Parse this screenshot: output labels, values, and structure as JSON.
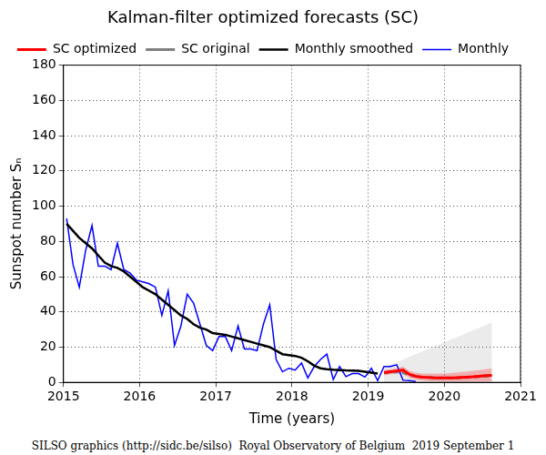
{
  "chart_data": {
    "type": "line",
    "title": "Kalman-filter optimized forecasts (SC)",
    "x_label": "Time (years)",
    "y_label": "Sunspot number Sₙ",
    "caption": "SILSO graphics (http://sidc.be/silso)  Royal Observatory of Belgium  2019 September 1",
    "xlim": [
      2015,
      2021
    ],
    "xticks": [
      2015,
      2016,
      2017,
      2018,
      2019,
      2020,
      2021
    ],
    "ylim": [
      0,
      180
    ],
    "yticks": [
      0,
      20,
      40,
      60,
      80,
      100,
      120,
      140,
      160,
      180
    ],
    "grid": true,
    "legend": "top",
    "series": [
      {
        "name": "Monthly",
        "color": "#0000ff",
        "line_style": "solid",
        "x": [
          2015.042,
          2015.125,
          2015.208,
          2015.292,
          2015.375,
          2015.458,
          2015.542,
          2015.625,
          2015.708,
          2015.792,
          2015.875,
          2015.958,
          2016.042,
          2016.125,
          2016.208,
          2016.292,
          2016.375,
          2016.458,
          2016.542,
          2016.625,
          2016.708,
          2016.792,
          2016.875,
          2016.958,
          2017.042,
          2017.125,
          2017.208,
          2017.292,
          2017.375,
          2017.458,
          2017.542,
          2017.625,
          2017.708,
          2017.792,
          2017.875,
          2017.958,
          2018.042,
          2018.125,
          2018.208,
          2018.292,
          2018.375,
          2018.458,
          2018.542,
          2018.625,
          2018.708,
          2018.792,
          2018.875,
          2018.958,
          2019.042,
          2019.125,
          2019.208,
          2019.292,
          2019.375,
          2019.458,
          2019.542,
          2019.625
        ],
        "values": [
          93,
          67,
          54,
          75,
          89,
          66,
          66,
          64,
          79,
          64,
          62,
          58,
          57,
          56,
          54,
          38,
          52,
          21,
          32,
          50,
          45,
          33,
          21,
          18,
          26,
          26,
          18,
          32,
          19,
          19,
          18,
          33,
          44,
          13,
          6,
          8,
          7,
          11,
          2.5,
          9,
          13,
          16,
          1.6,
          9,
          3.3,
          5,
          5,
          3,
          8,
          1,
          9,
          9,
          10,
          1.2,
          1,
          0.5
        ]
      },
      {
        "name": "Monthly smoothed",
        "color": "#000000",
        "line_style": "solid",
        "x": [
          2015.042,
          2015.125,
          2015.208,
          2015.292,
          2015.375,
          2015.458,
          2015.542,
          2015.625,
          2015.708,
          2015.792,
          2015.875,
          2015.958,
          2016.042,
          2016.125,
          2016.208,
          2016.292,
          2016.375,
          2016.458,
          2016.542,
          2016.625,
          2016.708,
          2016.792,
          2016.875,
          2016.958,
          2017.042,
          2017.125,
          2017.208,
          2017.292,
          2017.375,
          2017.458,
          2017.542,
          2017.625,
          2017.708,
          2017.792,
          2017.875,
          2017.958,
          2018.042,
          2018.125,
          2018.208,
          2018.292,
          2018.375,
          2018.458,
          2018.542,
          2018.625,
          2018.708,
          2018.792,
          2018.875,
          2018.958,
          2019.042,
          2019.125
        ],
        "values": [
          90,
          86,
          82,
          79,
          76,
          72,
          68,
          66,
          65,
          63,
          60,
          57,
          54,
          52,
          50,
          47,
          44,
          41,
          38,
          36,
          33,
          31,
          30,
          28,
          27.5,
          27,
          26,
          25,
          24,
          23,
          22,
          21,
          20,
          18,
          16,
          15.5,
          15,
          14,
          12,
          9.5,
          8,
          7.5,
          7.2,
          7,
          6.8,
          6.7,
          6.5,
          6,
          5.5,
          5
        ]
      },
      {
        "name": "SC original",
        "color": "#808080",
        "line_style": "dashed",
        "x": [
          2019.208,
          2019.292,
          2019.375,
          2019.458,
          2019.542,
          2019.625,
          2019.708,
          2019.792,
          2019.875,
          2019.958,
          2020.042,
          2020.125,
          2020.208,
          2020.292,
          2020.375,
          2020.458,
          2020.542,
          2020.625
        ],
        "values": [
          5.5,
          5.8,
          6,
          5.5,
          4,
          3.5,
          3,
          2.8,
          2.6,
          2.5,
          2.5,
          2.5,
          2.6,
          2.8,
          3,
          3.2,
          3.4,
          3.6
        ],
        "lower": [
          0,
          0,
          0,
          0,
          0,
          0,
          0,
          0,
          0,
          0,
          0,
          0,
          0,
          0,
          0,
          0,
          0,
          0
        ],
        "upper": [
          8,
          10,
          11.5,
          13,
          14.5,
          16,
          17.5,
          19,
          20.5,
          22,
          23.5,
          25,
          26.5,
          28,
          29.5,
          31,
          32.5,
          34
        ]
      },
      {
        "name": "SC optimized",
        "color": "#ff0000",
        "line_style": "solid",
        "x": [
          2019.208,
          2019.292,
          2019.375,
          2019.458,
          2019.542,
          2019.625,
          2019.708,
          2019.792,
          2019.875,
          2019.958,
          2020.042,
          2020.125,
          2020.208,
          2020.292,
          2020.375,
          2020.458,
          2020.542,
          2020.625
        ],
        "values": [
          5.5,
          6,
          6.5,
          7,
          4.5,
          3.5,
          3,
          2.8,
          2.6,
          2.5,
          2.5,
          2.6,
          2.8,
          3,
          3.2,
          3.5,
          3.8,
          4
        ],
        "lower": [
          4,
          4.5,
          5,
          5,
          2.5,
          1.5,
          1,
          0.8,
          0.6,
          0.5,
          0.4,
          0.4,
          0.4,
          0.4,
          0.5,
          0.5,
          0.5,
          0.5
        ],
        "upper": [
          7,
          7.5,
          8,
          9,
          6.5,
          5.5,
          5,
          5,
          5,
          5,
          5.2,
          5.5,
          5.8,
          6.2,
          6.6,
          7,
          7.5,
          8
        ]
      }
    ]
  }
}
